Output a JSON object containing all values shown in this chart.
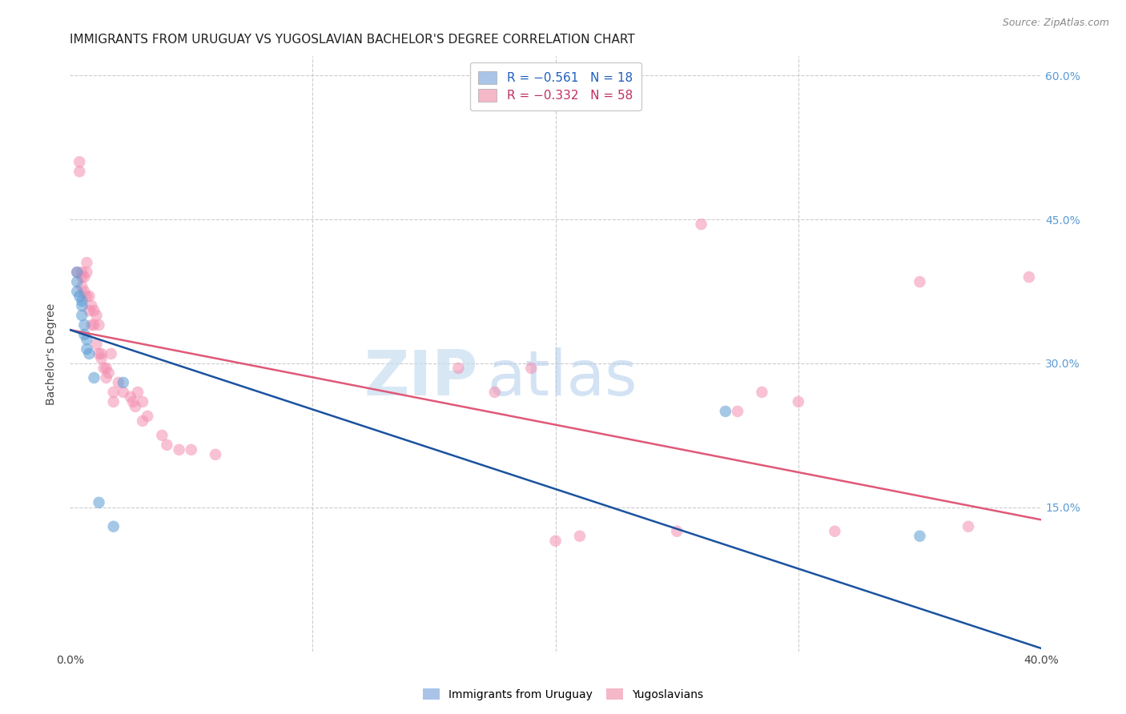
{
  "title": "IMMIGRANTS FROM URUGUAY VS YUGOSLAVIAN BACHELOR'S DEGREE CORRELATION CHART",
  "source": "Source: ZipAtlas.com",
  "ylabel": "Bachelor's Degree",
  "xmin": 0.0,
  "xmax": 0.4,
  "ymin": 0.0,
  "ymax": 0.62,
  "xticks": [
    0.0,
    0.1,
    0.2,
    0.3,
    0.4
  ],
  "xtick_labels_show": [
    "0.0%",
    "",
    "",
    "",
    "40.0%"
  ],
  "yticks": [
    0.0,
    0.15,
    0.3,
    0.45,
    0.6
  ],
  "ytick_labels_right": [
    "",
    "15.0%",
    "30.0%",
    "45.0%",
    "60.0%"
  ],
  "legend_entries": [
    {
      "label": "R = −0.561   N = 18",
      "color": "#aac4e8"
    },
    {
      "label": "R = −0.332   N = 58",
      "color": "#f4b8c8"
    }
  ],
  "legend_bottom": [
    {
      "label": "Immigrants from Uruguay",
      "color": "#aac4e8"
    },
    {
      "label": "Yugoslavians",
      "color": "#f4b8c8"
    }
  ],
  "watermark_zip": "ZIP",
  "watermark_atlas": "atlas",
  "uruguay_scatter_x": [
    0.003,
    0.003,
    0.003,
    0.004,
    0.005,
    0.005,
    0.005,
    0.006,
    0.006,
    0.007,
    0.007,
    0.008,
    0.01,
    0.012,
    0.018,
    0.022,
    0.27,
    0.35
  ],
  "uruguay_scatter_y": [
    0.395,
    0.385,
    0.375,
    0.37,
    0.365,
    0.36,
    0.35,
    0.34,
    0.33,
    0.325,
    0.315,
    0.31,
    0.285,
    0.155,
    0.13,
    0.28,
    0.25,
    0.12
  ],
  "yugoslavian_scatter_x": [
    0.003,
    0.004,
    0.004,
    0.005,
    0.005,
    0.005,
    0.006,
    0.006,
    0.007,
    0.007,
    0.007,
    0.008,
    0.008,
    0.009,
    0.009,
    0.01,
    0.01,
    0.011,
    0.011,
    0.012,
    0.012,
    0.013,
    0.013,
    0.014,
    0.015,
    0.015,
    0.016,
    0.017,
    0.018,
    0.018,
    0.02,
    0.022,
    0.025,
    0.026,
    0.027,
    0.028,
    0.03,
    0.03,
    0.032,
    0.038,
    0.04,
    0.045,
    0.05,
    0.06,
    0.16,
    0.175,
    0.19,
    0.2,
    0.21,
    0.25,
    0.26,
    0.275,
    0.285,
    0.3,
    0.315,
    0.35,
    0.37,
    0.395
  ],
  "yugoslavian_scatter_y": [
    0.395,
    0.51,
    0.5,
    0.395,
    0.39,
    0.38,
    0.39,
    0.375,
    0.405,
    0.395,
    0.37,
    0.37,
    0.355,
    0.36,
    0.34,
    0.355,
    0.34,
    0.35,
    0.32,
    0.34,
    0.31,
    0.31,
    0.305,
    0.295,
    0.295,
    0.285,
    0.29,
    0.31,
    0.27,
    0.26,
    0.28,
    0.27,
    0.265,
    0.26,
    0.255,
    0.27,
    0.26,
    0.24,
    0.245,
    0.225,
    0.215,
    0.21,
    0.21,
    0.205,
    0.295,
    0.27,
    0.295,
    0.115,
    0.12,
    0.125,
    0.445,
    0.25,
    0.27,
    0.26,
    0.125,
    0.385,
    0.13,
    0.39
  ],
  "uruguay_line_x": [
    0.0,
    0.4
  ],
  "uruguay_line_y": [
    0.335,
    0.003
  ],
  "yugoslavian_line_x": [
    0.0,
    0.4
  ],
  "yugoslavian_line_y": [
    0.335,
    0.137
  ],
  "scatter_size": 110,
  "scatter_alpha": 0.55,
  "uruguay_color": "#5b9bd5",
  "yugoslavian_color": "#f48fb1",
  "uruguay_line_color": "#1a52a0",
  "yugoslavian_line_color": "#e05878",
  "background_color": "#ffffff",
  "grid_color": "#cccccc",
  "title_fontsize": 11,
  "axis_fontsize": 10,
  "tick_fontsize": 10,
  "tick_color_right": "#5b9bd5",
  "zip_color": "#c5d8f0",
  "atlas_color": "#b8cee8"
}
